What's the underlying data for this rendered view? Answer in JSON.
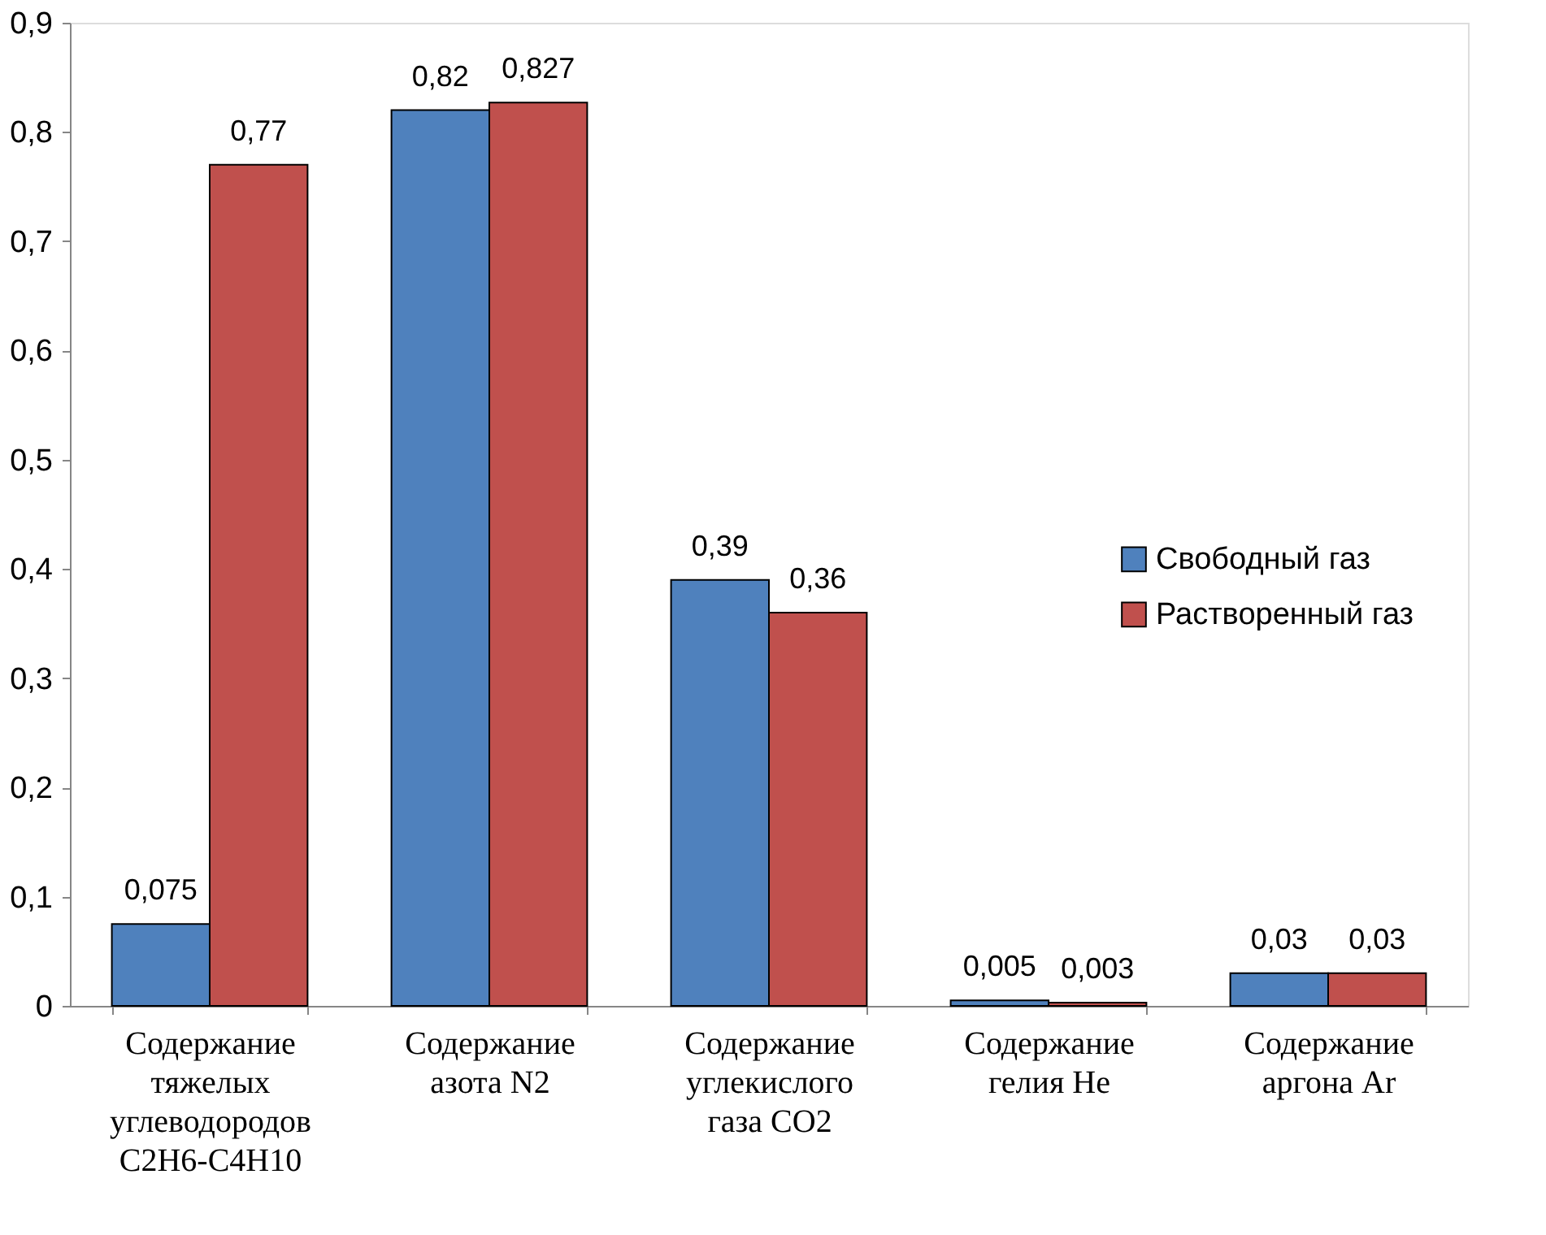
{
  "chart_data": {
    "type": "bar",
    "categories": [
      "Содержание\nтяжелых\nуглеводородов\nС2Н6-С4Н10",
      "Содержание\nазота N2",
      "Содержание\nуглекислого\nгаза СО2",
      "Содержание\nгелия He",
      "Содержание\nаргона Ar"
    ],
    "series": [
      {
        "name": "Свободный газ",
        "color": "#4f81bd",
        "values": [
          0.075,
          0.82,
          0.39,
          0.005,
          0.03
        ],
        "value_labels": [
          "0,075",
          "0,82",
          "0,39",
          "0,005",
          "0,03"
        ]
      },
      {
        "name": "Растворенный газ",
        "color": "#c0504d",
        "values": [
          0.77,
          0.827,
          0.36,
          0.003,
          0.03
        ],
        "value_labels": [
          "0,77",
          "0,827",
          "0,36",
          "0,003",
          "0,03"
        ]
      }
    ],
    "ylim": [
      0,
      0.9
    ],
    "yticks": [
      {
        "value": 0,
        "label": "0"
      },
      {
        "value": 0.1,
        "label": "0,1"
      },
      {
        "value": 0.2,
        "label": "0,2"
      },
      {
        "value": 0.3,
        "label": "0,3"
      },
      {
        "value": 0.4,
        "label": "0,4"
      },
      {
        "value": 0.5,
        "label": "0,5"
      },
      {
        "value": 0.6,
        "label": "0,6"
      },
      {
        "value": 0.7,
        "label": "0,7"
      },
      {
        "value": 0.8,
        "label": "0,8"
      },
      {
        "value": 0.9,
        "label": "0,9"
      }
    ],
    "grid": false,
    "legend": "right"
  }
}
